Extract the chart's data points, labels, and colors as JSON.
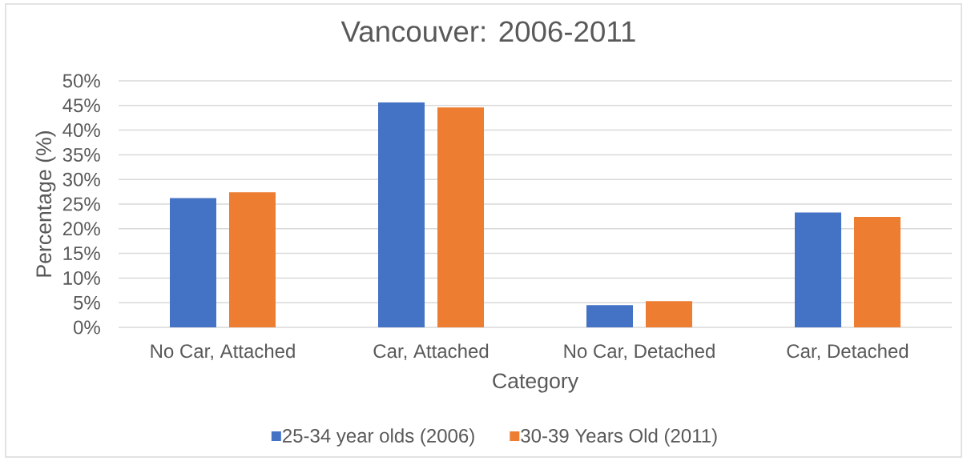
{
  "chart_data": {
    "type": "bar",
    "title": "Vancouver: 2006-2011",
    "xlabel": "Category",
    "ylabel": "Percentage (%)",
    "categories": [
      "No Car, Attached",
      "Car, Attached",
      "No Car, Detached",
      "Car, Detached"
    ],
    "series": [
      {
        "name": "25-34 year olds (2006)",
        "color": "#4472c4",
        "values": [
          26.2,
          45.6,
          4.5,
          23.3
        ]
      },
      {
        "name": "30-39 Years Old (2011)",
        "color": "#ed7d31",
        "values": [
          27.4,
          44.6,
          5.3,
          22.4
        ]
      }
    ],
    "ylim": [
      0,
      50
    ],
    "yticks": [
      {
        "value": 0,
        "label": "0%"
      },
      {
        "value": 5,
        "label": "5%"
      },
      {
        "value": 10,
        "label": "10%"
      },
      {
        "value": 15,
        "label": "15%"
      },
      {
        "value": 20,
        "label": "20%"
      },
      {
        "value": 25,
        "label": "25%"
      },
      {
        "value": 30,
        "label": "30%"
      },
      {
        "value": 35,
        "label": "35%"
      },
      {
        "value": 40,
        "label": "40%"
      },
      {
        "value": 45,
        "label": "45%"
      },
      {
        "value": 50,
        "label": "50%"
      }
    ],
    "grid": "y",
    "legend": "bottom"
  }
}
